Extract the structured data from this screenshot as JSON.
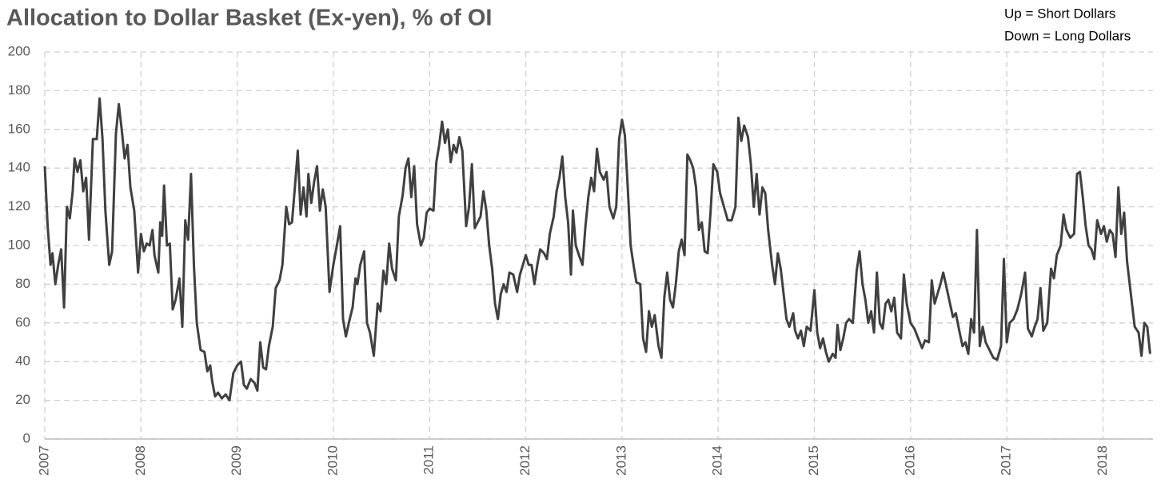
{
  "chart_data": {
    "type": "line",
    "title": "Allocation to Dollar Basket (Ex-yen), % of OI",
    "annotations": [
      "Up = Short Dollars",
      "Down = Long Dollars"
    ],
    "color": "#404040",
    "grid": true,
    "xlim": [
      2007,
      2018.52
    ],
    "ylim": [
      0,
      200
    ],
    "xticks": [
      2007,
      2008,
      2009,
      2010,
      2011,
      2012,
      2013,
      2014,
      2015,
      2016,
      2017,
      2018
    ],
    "yticks": [
      0,
      20,
      40,
      60,
      80,
      100,
      120,
      140,
      160,
      180,
      200
    ],
    "x": [
      2007.0,
      2007.03,
      2007.06,
      2007.08,
      2007.11,
      2007.14,
      2007.17,
      2007.2,
      2007.23,
      2007.26,
      2007.29,
      2007.31,
      2007.34,
      2007.37,
      2007.4,
      2007.43,
      2007.46,
      2007.5,
      2007.54,
      2007.57,
      2007.6,
      2007.63,
      2007.67,
      2007.7,
      2007.74,
      2007.77,
      2007.8,
      2007.83,
      2007.86,
      2007.89,
      2007.93,
      2007.97,
      2008.0,
      2008.03,
      2008.06,
      2008.09,
      2008.12,
      2008.14,
      2008.18,
      2008.2,
      2008.22,
      2008.24,
      2008.27,
      2008.3,
      2008.33,
      2008.36,
      2008.4,
      2008.43,
      2008.46,
      2008.49,
      2008.52,
      2008.55,
      2008.58,
      2008.62,
      2008.66,
      2008.69,
      2008.72,
      2008.74,
      2008.77,
      2008.8,
      2008.84,
      2008.88,
      2008.92,
      2008.96,
      2009.0,
      2009.04,
      2009.07,
      2009.1,
      2009.14,
      2009.18,
      2009.21,
      2009.24,
      2009.27,
      2009.3,
      2009.33,
      2009.37,
      2009.4,
      2009.44,
      2009.47,
      2009.51,
      2009.54,
      2009.57,
      2009.6,
      2009.63,
      2009.66,
      2009.69,
      2009.72,
      2009.74,
      2009.77,
      2009.8,
      2009.83,
      2009.86,
      2009.89,
      2009.92,
      2009.96,
      2010.0,
      2010.04,
      2010.07,
      2010.1,
      2010.13,
      2010.17,
      2010.2,
      2010.23,
      2010.25,
      2010.28,
      2010.32,
      2010.35,
      2010.38,
      2010.42,
      2010.46,
      2010.49,
      2010.52,
      2010.55,
      2010.58,
      2010.61,
      2010.65,
      2010.68,
      2010.72,
      2010.75,
      2010.78,
      2010.81,
      2010.84,
      2010.87,
      2010.91,
      2010.94,
      2010.97,
      2011.0,
      2011.04,
      2011.07,
      2011.1,
      2011.13,
      2011.16,
      2011.19,
      2011.22,
      2011.25,
      2011.28,
      2011.31,
      2011.34,
      2011.38,
      2011.41,
      2011.44,
      2011.47,
      2011.5,
      2011.53,
      2011.56,
      2011.59,
      2011.62,
      2011.65,
      2011.68,
      2011.71,
      2011.74,
      2011.77,
      2011.8,
      2011.83,
      2011.87,
      2011.91,
      2011.94,
      2011.97,
      2012.0,
      2012.03,
      2012.06,
      2012.09,
      2012.12,
      2012.15,
      2012.19,
      2012.22,
      2012.25,
      2012.29,
      2012.32,
      2012.35,
      2012.38,
      2012.41,
      2012.44,
      2012.47,
      2012.49,
      2012.52,
      2012.56,
      2012.59,
      2012.62,
      2012.65,
      2012.68,
      2012.71,
      2012.74,
      2012.77,
      2012.81,
      2012.84,
      2012.87,
      2012.91,
      2012.94,
      2012.97,
      2013.0,
      2013.03,
      2013.06,
      2013.09,
      2013.12,
      2013.15,
      2013.19,
      2013.22,
      2013.25,
      2013.28,
      2013.31,
      2013.34,
      2013.38,
      2013.41,
      2013.44,
      2013.47,
      2013.5,
      2013.53,
      2013.56,
      2013.59,
      2013.62,
      2013.65,
      2013.68,
      2013.71,
      2013.74,
      2013.77,
      2013.8,
      2013.83,
      2013.86,
      2013.89,
      2013.92,
      2013.95,
      2013.99,
      2014.02,
      2014.06,
      2014.1,
      2014.14,
      2014.18,
      2014.21,
      2014.24,
      2014.27,
      2014.31,
      2014.34,
      2014.37,
      2014.4,
      2014.43,
      2014.46,
      2014.49,
      2014.52,
      2014.56,
      2014.59,
      2014.62,
      2014.65,
      2014.68,
      2014.71,
      2014.74,
      2014.78,
      2014.8,
      2014.83,
      2014.86,
      2014.89,
      2014.92,
      2014.96,
      2015.0,
      2015.03,
      2015.06,
      2015.09,
      2015.12,
      2015.15,
      2015.19,
      2015.22,
      2015.24,
      2015.27,
      2015.3,
      2015.33,
      2015.36,
      2015.4,
      2015.44,
      2015.47,
      2015.5,
      2015.53,
      2015.56,
      2015.59,
      2015.62,
      2015.65,
      2015.68,
      2015.71,
      2015.74,
      2015.77,
      2015.8,
      2015.83,
      2015.86,
      2015.9,
      2015.93,
      2015.96,
      2016.0,
      2016.04,
      2016.08,
      2016.12,
      2016.15,
      2016.19,
      2016.22,
      2016.25,
      2016.28,
      2016.31,
      2016.34,
      2016.38,
      2016.41,
      2016.44,
      2016.47,
      2016.51,
      2016.54,
      2016.57,
      2016.6,
      2016.63,
      2016.66,
      2016.69,
      2016.72,
      2016.75,
      2016.78,
      2016.82,
      2016.86,
      2016.9,
      2016.94,
      2016.97,
      2017.0,
      2017.03,
      2017.07,
      2017.11,
      2017.15,
      2017.19,
      2017.22,
      2017.26,
      2017.29,
      2017.32,
      2017.35,
      2017.38,
      2017.42,
      2017.46,
      2017.49,
      2017.52,
      2017.56,
      2017.59,
      2017.62,
      2017.66,
      2017.7,
      2017.73,
      2017.76,
      2017.79,
      2017.82,
      2017.85,
      2017.88,
      2017.91,
      2017.94,
      2017.98,
      2018.01,
      2018.04,
      2018.07,
      2018.1,
      2018.13,
      2018.16,
      2018.19,
      2018.22,
      2018.25,
      2018.29,
      2018.33,
      2018.37,
      2018.4,
      2018.43,
      2018.46,
      2018.49
    ],
    "values": [
      141,
      110,
      90,
      96,
      80,
      90,
      98,
      68,
      120,
      114,
      128,
      145,
      138,
      144,
      128,
      135,
      103,
      155,
      155,
      176,
      155,
      118,
      90,
      97,
      158,
      173,
      160,
      145,
      152,
      130,
      118,
      86,
      106,
      97,
      101,
      100,
      108,
      95,
      86,
      112,
      105,
      131,
      100,
      101,
      67,
      72,
      83,
      58,
      113,
      103,
      137,
      90,
      60,
      46,
      45,
      35,
      38,
      30,
      22,
      24,
      21,
      23,
      20,
      34,
      38,
      40,
      28,
      26,
      31,
      29,
      25,
      50,
      37,
      36,
      48,
      58,
      78,
      82,
      90,
      120,
      111,
      112,
      130,
      149,
      116,
      130,
      115,
      137,
      122,
      133,
      141,
      118,
      129,
      120,
      76,
      90,
      101,
      110,
      62,
      53,
      62,
      68,
      83,
      80,
      90,
      97,
      60,
      55,
      43,
      70,
      66,
      87,
      80,
      101,
      88,
      82,
      115,
      126,
      140,
      145,
      125,
      141,
      111,
      100,
      104,
      117,
      119,
      118,
      143,
      152,
      164,
      153,
      160,
      143,
      152,
      148,
      156,
      149,
      110,
      120,
      142,
      109,
      112,
      115,
      128,
      118,
      100,
      88,
      70,
      62,
      75,
      80,
      76,
      86,
      85,
      76,
      85,
      90,
      95,
      90,
      90,
      80,
      90,
      98,
      96,
      93,
      106,
      115,
      128,
      135,
      146,
      125,
      112,
      85,
      118,
      100,
      94,
      90,
      110,
      125,
      135,
      128,
      150,
      138,
      134,
      138,
      120,
      114,
      120,
      155,
      165,
      157,
      130,
      100,
      90,
      81,
      80,
      52,
      45,
      66,
      58,
      64,
      48,
      42,
      73,
      86,
      72,
      68,
      80,
      97,
      103,
      95,
      147,
      144,
      140,
      130,
      108,
      112,
      97,
      96,
      117,
      142,
      138,
      127,
      120,
      113,
      113,
      120,
      166,
      154,
      162,
      156,
      142,
      120,
      137,
      116,
      130,
      127,
      108,
      90,
      80,
      96,
      88,
      75,
      62,
      58,
      65,
      56,
      52,
      56,
      48,
      58,
      56,
      77,
      55,
      47,
      52,
      45,
      40,
      44,
      42,
      59,
      46,
      52,
      60,
      62,
      60,
      87,
      97,
      80,
      72,
      60,
      66,
      55,
      86,
      60,
      57,
      70,
      72,
      66,
      73,
      55,
      52,
      85,
      70,
      60,
      57,
      52,
      47,
      51,
      50,
      82,
      70,
      75,
      80,
      86,
      77,
      70,
      63,
      65,
      55,
      48,
      50,
      44,
      62,
      55,
      108,
      48,
      58,
      50,
      46,
      42,
      41,
      48,
      93,
      50,
      60,
      62,
      67,
      75,
      86,
      57,
      53,
      58,
      62,
      78,
      56,
      60,
      88,
      83,
      95,
      100,
      116,
      108,
      104,
      106,
      137,
      138,
      125,
      110,
      100,
      98,
      93,
      113,
      106,
      110,
      102,
      108,
      106,
      94,
      130,
      106,
      117,
      92,
      75,
      58,
      55,
      43,
      60,
      58,
      44
    ]
  }
}
